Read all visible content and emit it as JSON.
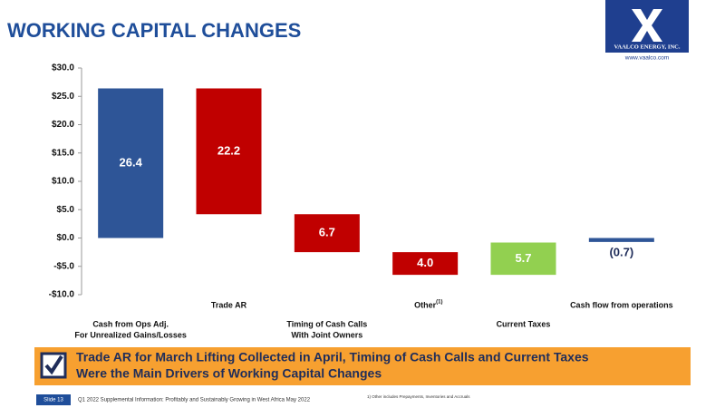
{
  "header": {
    "title": "WORKING CAPITAL CHANGES",
    "logo": "VAALCO ENERGY, INC.",
    "website": "www.vaalco.com"
  },
  "chart_data": {
    "type": "waterfall",
    "categories": [
      [
        "Cash from Ops Adj.",
        "For Unrealized Gains/Losses"
      ],
      [
        "Trade AR"
      ],
      [
        "Timing of Cash Calls",
        "With Joint Owners"
      ],
      [
        "Other"
      ],
      [
        "Current Taxes"
      ],
      [
        "Cash flow from operations"
      ]
    ],
    "footnote_ref": "(1)",
    "values": [
      26.4,
      -22.2,
      -6.7,
      -4.0,
      5.7,
      -0.7
    ],
    "value_labels": [
      "26.4",
      "22.2",
      "6.7",
      "4.0",
      "5.7",
      "(0.7)"
    ],
    "colors": [
      "#2e5597",
      "#c00000",
      "#c00000",
      "#c00000",
      "#92d050",
      "#2e5597"
    ],
    "ylim": [
      -10,
      30
    ],
    "yticks": [
      {
        "value": -10,
        "label": "-$10.0"
      },
      {
        "value": -5,
        "label": "-$5.0"
      },
      {
        "value": 0,
        "label": "$0.0"
      },
      {
        "value": 5,
        "label": "$5.0"
      },
      {
        "value": 10,
        "label": "$10.0"
      },
      {
        "value": 15,
        "label": "$15.0"
      },
      {
        "value": 20,
        "label": "$20.0"
      },
      {
        "value": 25,
        "label": "$25.0"
      },
      {
        "value": 30,
        "label": "$30.0"
      }
    ]
  },
  "banner": {
    "lines": [
      "Trade AR for March Lifting Collected in April, Timing of Cash Calls and Current Taxes",
      "Were the Main Drivers of Working Capital Changes"
    ]
  },
  "footer": {
    "slide": "Slide 13",
    "text": "Q1 2022 Supplemental Information: Profitably and Sustainably Growing in West Africa May 2022",
    "footnote": "1)  Other includes Prepayments, Inventories and Accruals"
  }
}
